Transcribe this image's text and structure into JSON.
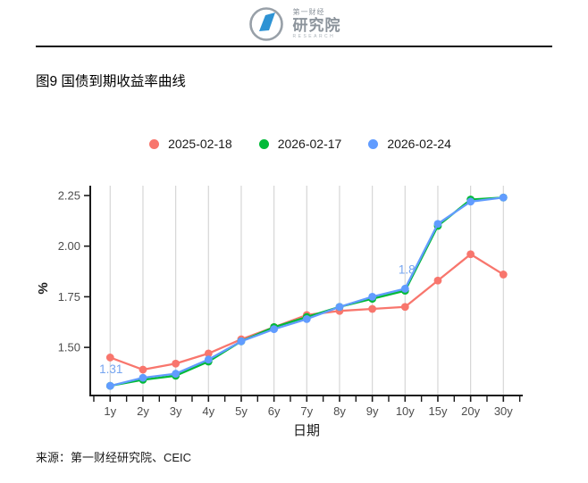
{
  "header": {
    "logo": {
      "brand_cn_top": "第一财经",
      "brand_cn_bottom": "研究院",
      "brand_en": "RESEARCH"
    }
  },
  "figure": {
    "title": "图9 国债到期收益率曲线"
  },
  "source": {
    "text": "来源：第一财经研究院、CEIC"
  },
  "colors": {
    "series_red": "#F8766D",
    "series_green": "#00BA38",
    "series_blue": "#619CFF",
    "annotation_blue": "#74A4F0",
    "gridline": "#d6d6d6",
    "axis_line": "#1a1a1a",
    "tick_label": "#4d4d4d",
    "logo_gray": "#98a0a8",
    "logo_blue": "#2e93d4"
  },
  "chart_data": {
    "type": "line",
    "categories": [
      "1y",
      "2y",
      "3y",
      "4y",
      "5y",
      "6y",
      "7y",
      "8y",
      "9y",
      "10y",
      "15y",
      "20y",
      "30y"
    ],
    "series": [
      {
        "name": "2025-02-18",
        "color": "#F8766D",
        "values": [
          1.45,
          1.39,
          1.42,
          1.47,
          1.54,
          1.6,
          1.66,
          1.68,
          1.69,
          1.7,
          1.83,
          1.96,
          1.86
        ]
      },
      {
        "name": "2026-02-17",
        "color": "#00BA38",
        "values": [
          1.31,
          1.34,
          1.36,
          1.43,
          1.53,
          1.6,
          1.65,
          1.7,
          1.74,
          1.78,
          2.1,
          2.23,
          2.24
        ]
      },
      {
        "name": "2026-02-24",
        "color": "#619CFF",
        "values": [
          1.31,
          1.35,
          1.37,
          1.44,
          1.53,
          1.59,
          1.64,
          1.7,
          1.75,
          1.79,
          2.11,
          2.22,
          2.24
        ]
      }
    ],
    "annotations": [
      {
        "text": "1.31",
        "series": "2026-02-24",
        "category": "1y"
      },
      {
        "text": "1.8",
        "series": "2026-02-24",
        "category": "10y"
      }
    ],
    "title": "图9 国债到期收益率曲线",
    "xlabel": "日期",
    "ylabel": "%",
    "yticks": [
      1.5,
      1.75,
      2.0,
      2.25
    ],
    "ylim": [
      1.26,
      2.3
    ],
    "grid": "vertical-only",
    "legend_position": "top"
  }
}
